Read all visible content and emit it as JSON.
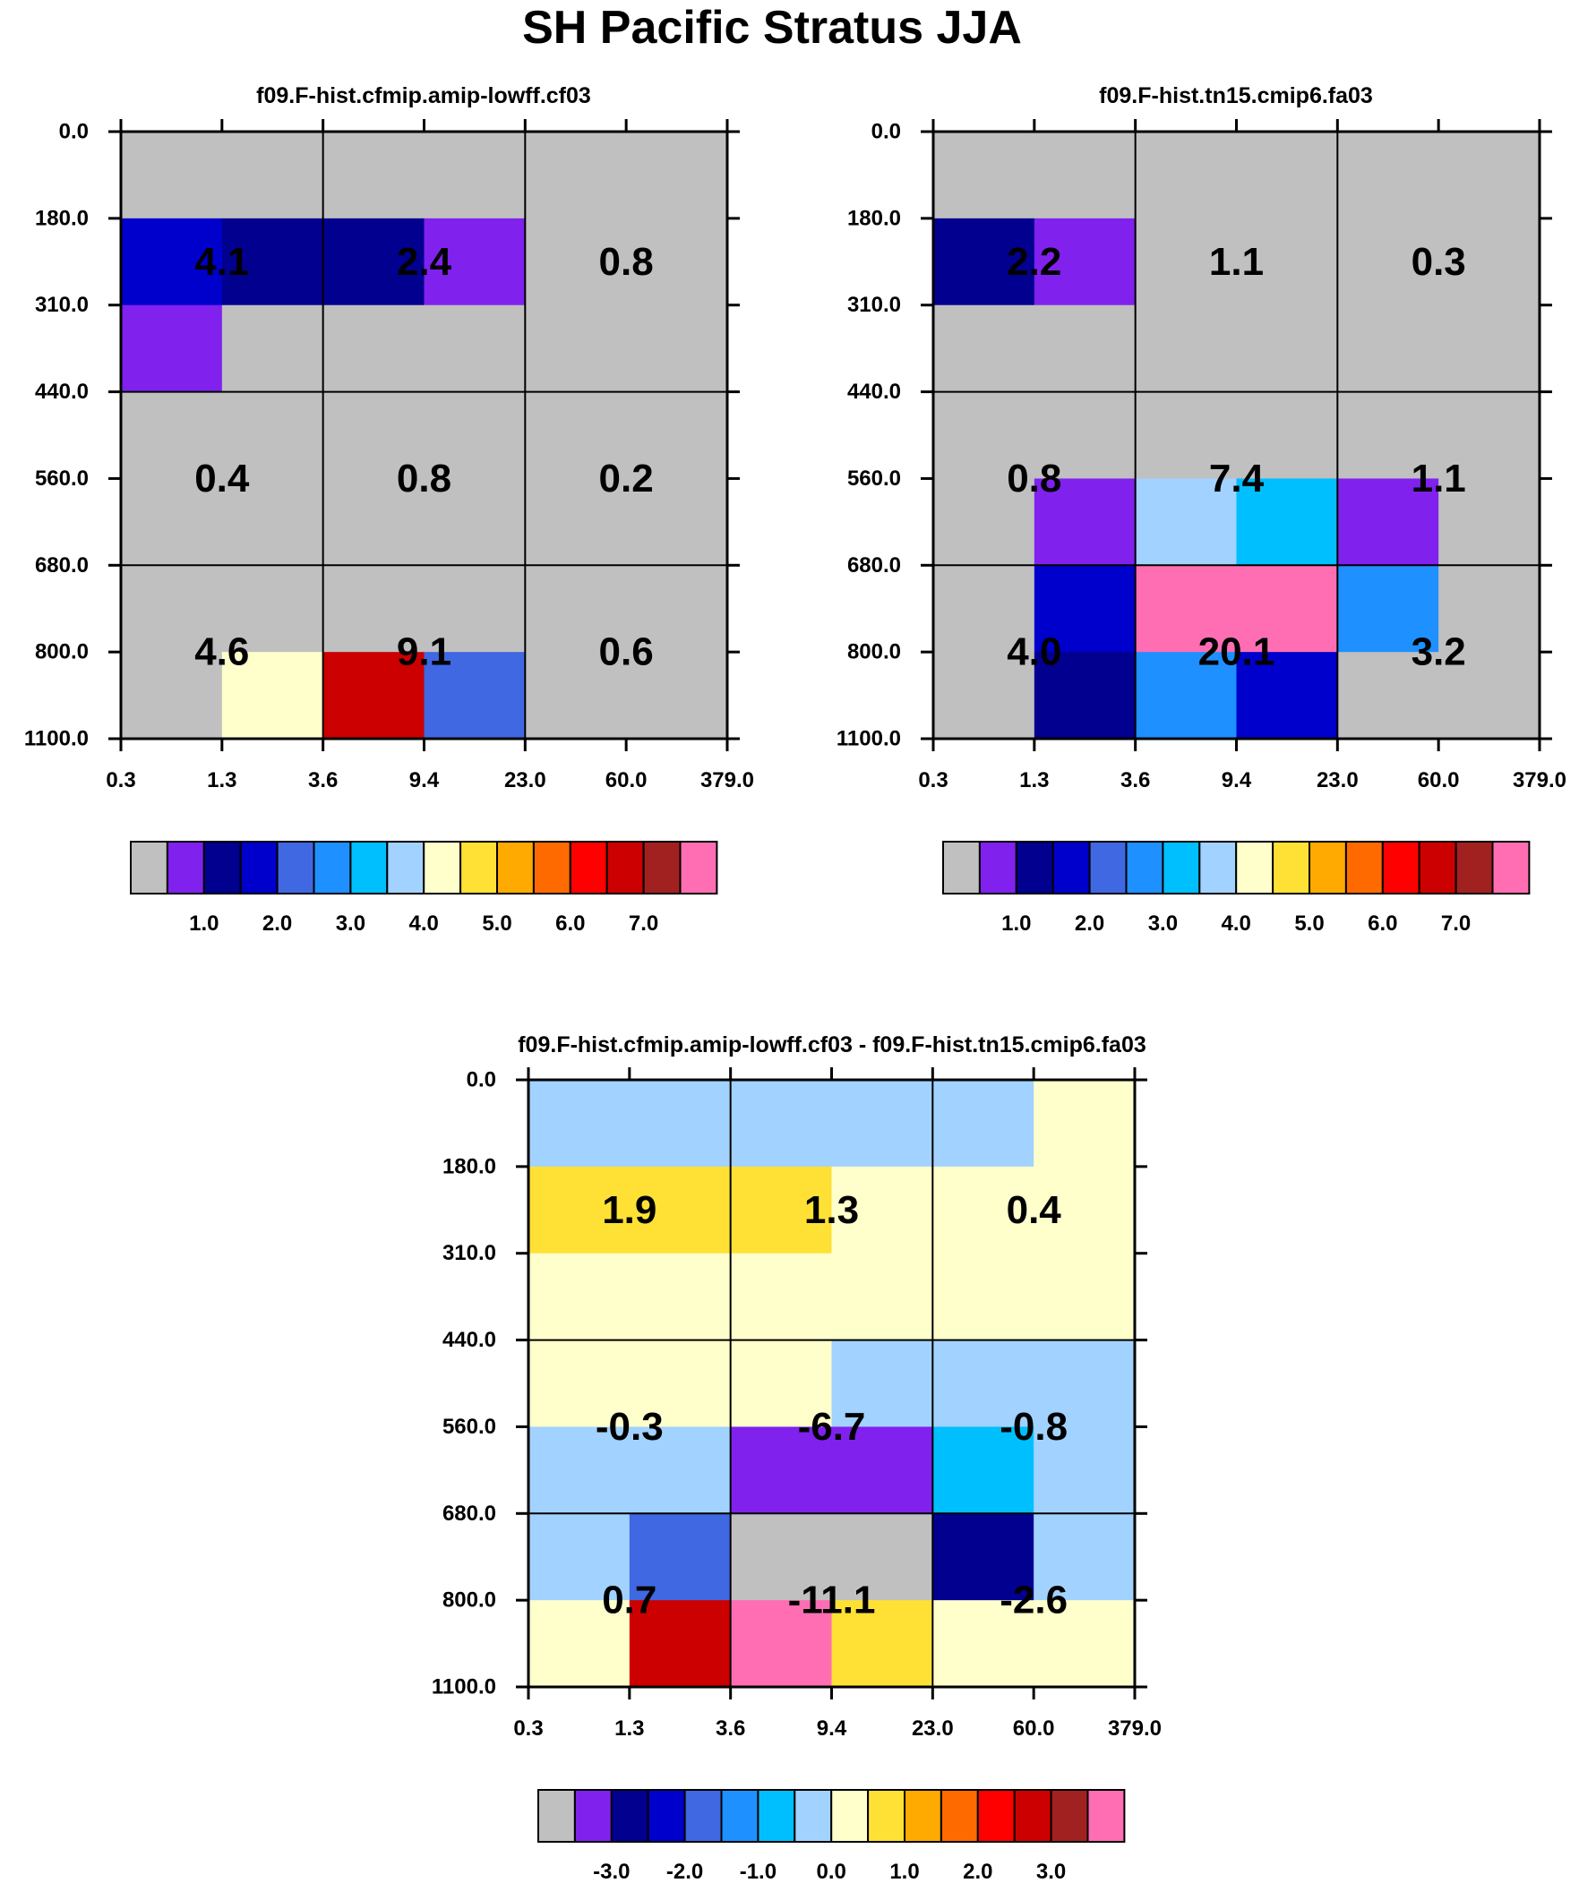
{
  "figure_title": "SH Pacific Stratus JJA",
  "colors": {
    "palette": [
      "#c0c0c0",
      "#8021ee",
      "#02008f",
      "#0000cc",
      "#4068e2",
      "#1e90ff",
      "#00bfff",
      "#a2d2ff",
      "#ffffcc",
      "#ffe135",
      "#ffaa00",
      "#ff6a00",
      "#ff0000",
      "#cc0000",
      "#a12121",
      "#ff6eb3"
    ]
  },
  "chart_data": [
    {
      "type": "heatmap",
      "title": "f09.F-hist.cfmip.amip-lowff.cf03",
      "x_ticks": [
        "0.3",
        "1.3",
        "3.6",
        "9.4",
        "23.0",
        "60.0",
        "379.0"
      ],
      "y_ticks": [
        "0.0",
        "180.0",
        "310.0",
        "440.0",
        "560.0",
        "680.0",
        "800.0",
        "1100.0"
      ],
      "cell_color_index": [
        [
          0,
          0,
          0,
          0,
          0,
          0
        ],
        [
          3,
          2,
          2,
          1,
          0,
          0
        ],
        [
          1,
          0,
          0,
          0,
          0,
          0
        ],
        [
          0,
          0,
          0,
          0,
          0,
          0
        ],
        [
          0,
          0,
          0,
          0,
          0,
          0
        ],
        [
          0,
          0,
          0,
          0,
          0,
          0
        ],
        [
          0,
          8,
          13,
          4,
          0,
          0
        ]
      ],
      "group_values": [
        [
          "4.1",
          "2.4",
          "0.8"
        ],
        [
          "0.4",
          "0.8",
          "0.2"
        ],
        [
          "4.6",
          "9.1",
          "0.6"
        ]
      ],
      "colorbar_labels": [
        "1.0",
        "2.0",
        "3.0",
        "4.0",
        "5.0",
        "6.0",
        "7.0"
      ]
    },
    {
      "type": "heatmap",
      "title": "f09.F-hist.tn15.cmip6.fa03",
      "x_ticks": [
        "0.3",
        "1.3",
        "3.6",
        "9.4",
        "23.0",
        "60.0",
        "379.0"
      ],
      "y_ticks": [
        "0.0",
        "180.0",
        "310.0",
        "440.0",
        "560.0",
        "680.0",
        "800.0",
        "1100.0"
      ],
      "cell_color_index": [
        [
          0,
          0,
          0,
          0,
          0,
          0
        ],
        [
          2,
          1,
          0,
          0,
          0,
          0
        ],
        [
          0,
          0,
          0,
          0,
          0,
          0
        ],
        [
          0,
          0,
          0,
          0,
          0,
          0
        ],
        [
          0,
          1,
          7,
          6,
          1,
          0
        ],
        [
          0,
          3,
          15,
          15,
          5,
          0
        ],
        [
          0,
          2,
          5,
          3,
          0,
          0
        ]
      ],
      "group_values": [
        [
          "2.2",
          "1.1",
          "0.3"
        ],
        [
          "0.8",
          "7.4",
          "1.1"
        ],
        [
          "4.0",
          "20.1",
          "3.2"
        ]
      ],
      "colorbar_labels": [
        "1.0",
        "2.0",
        "3.0",
        "4.0",
        "5.0",
        "6.0",
        "7.0"
      ]
    },
    {
      "type": "heatmap",
      "title": "f09.F-hist.cfmip.amip-lowff.cf03 - f09.F-hist.tn15.cmip6.fa03",
      "x_ticks": [
        "0.3",
        "1.3",
        "3.6",
        "9.4",
        "23.0",
        "60.0",
        "379.0"
      ],
      "y_ticks": [
        "0.0",
        "180.0",
        "310.0",
        "440.0",
        "560.0",
        "680.0",
        "800.0",
        "1100.0"
      ],
      "cell_color_index": [
        [
          7,
          7,
          7,
          7,
          7,
          8
        ],
        [
          9,
          9,
          9,
          8,
          8,
          8
        ],
        [
          8,
          8,
          8,
          8,
          8,
          8
        ],
        [
          8,
          8,
          8,
          7,
          7,
          7
        ],
        [
          7,
          7,
          1,
          1,
          6,
          7
        ],
        [
          7,
          4,
          0,
          0,
          2,
          7
        ],
        [
          8,
          13,
          15,
          9,
          8,
          8
        ]
      ],
      "group_values": [
        [
          "1.9",
          "1.3",
          "0.4"
        ],
        [
          "-0.3",
          "-6.7",
          "-0.8"
        ],
        [
          "0.7",
          "-11.1",
          "-2.6"
        ]
      ],
      "colorbar_labels": [
        "-3.0",
        "-2.0",
        "-1.0",
        "0.0",
        "1.0",
        "2.0",
        "3.0"
      ]
    }
  ]
}
